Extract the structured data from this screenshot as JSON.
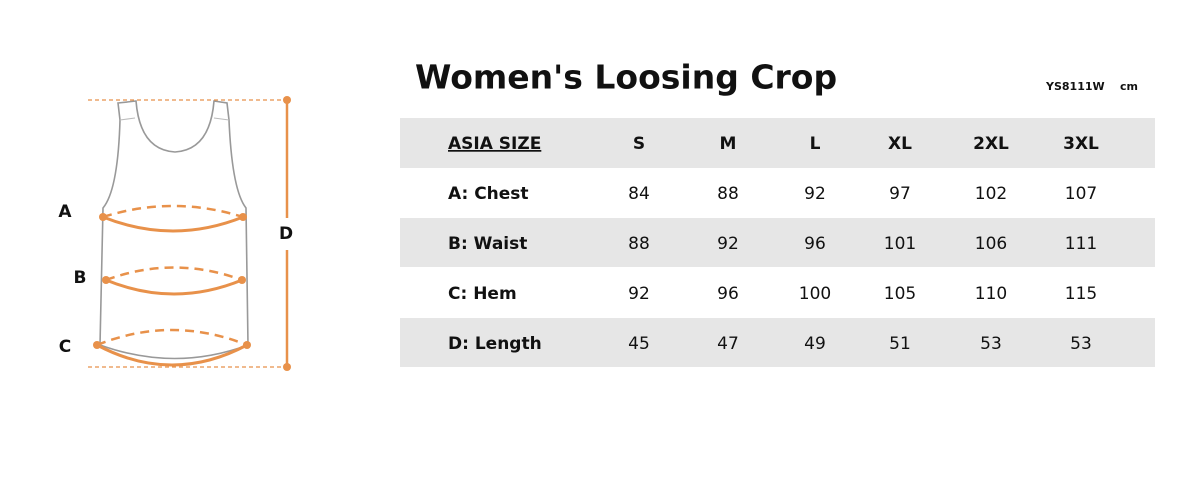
{
  "diagram": {
    "labels": [
      "A",
      "B",
      "C",
      "D"
    ]
  },
  "header": {
    "title": "Women's Loosing Crop",
    "code": "YS8111W",
    "unit": "cm"
  },
  "table": {
    "header": [
      "ASIA SIZE",
      "S",
      "M",
      "L",
      "XL",
      "2XL",
      "3XL"
    ],
    "rows": [
      [
        "A: Chest",
        "84",
        "88",
        "92",
        "97",
        "102",
        "107"
      ],
      [
        "B: Waist",
        "88",
        "92",
        "96",
        "101",
        "106",
        "111"
      ],
      [
        "C: Hem",
        "92",
        "96",
        "100",
        "105",
        "110",
        "115"
      ],
      [
        "D: Length",
        "45",
        "47",
        "49",
        "51",
        "53",
        "53"
      ]
    ]
  }
}
